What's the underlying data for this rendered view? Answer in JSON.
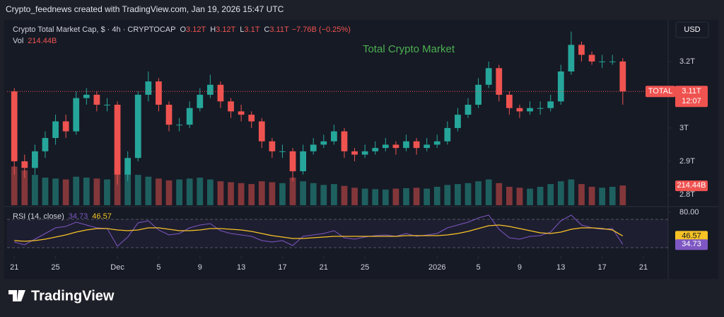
{
  "credit": "Crypto_feednews created with TradingView.com, Jan 19, 2026 15:47 UTC",
  "logo": "TradingView",
  "chart_data": {
    "type": "candlestick",
    "title": "Crypto Total Market Cap, $ · 4h · CRYPTOCAP",
    "ohlc_legend": [
      {
        "key": "O",
        "value": "3.12T"
      },
      {
        "key": "H",
        "value": "3.12T"
      },
      {
        "key": "L",
        "value": "3.1T"
      },
      {
        "key": "C",
        "value": "3.11T"
      }
    ],
    "change": "−7.76B (−0.25%)",
    "annotation": "Total Crypto Market",
    "currency": "USD",
    "symbol_tag": "TOTAL",
    "countdown": "12:07",
    "last_price": {
      "value": 3.11,
      "label": "3.11T"
    },
    "up_color": "#26a69a",
    "down_color": "#ef5350",
    "x": [
      0,
      1,
      2,
      3,
      4,
      5,
      6,
      7,
      8,
      9,
      10,
      11,
      12,
      13,
      14,
      15,
      16,
      17,
      18,
      19,
      20,
      21,
      22,
      23,
      24,
      25,
      26,
      27,
      28,
      29,
      30,
      31,
      32,
      33,
      34,
      35,
      36,
      37,
      38,
      39,
      40,
      41,
      42,
      43,
      44,
      45,
      46,
      47,
      48,
      49,
      50,
      51,
      52,
      53,
      54,
      55,
      56,
      57,
      58,
      59
    ],
    "open": [
      3.11,
      2.9,
      2.88,
      2.93,
      2.97,
      3.02,
      2.99,
      3.09,
      3.1,
      3.07,
      3.07,
      2.86,
      2.91,
      3.1,
      3.14,
      3.07,
      3.01,
      3.01,
      3.06,
      3.1,
      3.13,
      3.08,
      3.05,
      3.04,
      3.02,
      2.96,
      2.93,
      2.93,
      2.87,
      2.93,
      2.95,
      2.96,
      2.99,
      2.93,
      2.92,
      2.93,
      2.94,
      2.95,
      2.94,
      2.96,
      2.94,
      2.95,
      2.96,
      3.0,
      3.04,
      3.07,
      3.13,
      3.18,
      3.1,
      3.06,
      3.05,
      3.06,
      3.06,
      3.08,
      3.17,
      3.25,
      3.22,
      3.2,
      3.2,
      3.2
    ],
    "high": [
      3.12,
      2.92,
      2.95,
      2.99,
      3.04,
      3.04,
      3.11,
      3.12,
      3.11,
      3.09,
      3.08,
      2.93,
      3.11,
      3.17,
      3.15,
      3.08,
      3.03,
      3.08,
      3.12,
      3.16,
      3.14,
      3.09,
      3.07,
      3.05,
      3.03,
      2.97,
      2.95,
      2.94,
      2.95,
      2.97,
      2.98,
      3.01,
      3.0,
      2.94,
      2.95,
      2.96,
      2.97,
      2.96,
      2.98,
      2.97,
      2.97,
      2.98,
      3.02,
      3.06,
      3.09,
      3.15,
      3.2,
      3.19,
      3.11,
      3.07,
      3.08,
      3.08,
      3.1,
      3.19,
      3.29,
      3.26,
      3.23,
      3.22,
      3.22,
      3.21
    ],
    "low": [
      2.86,
      2.85,
      2.86,
      2.91,
      2.95,
      2.97,
      2.98,
      3.07,
      3.05,
      3.05,
      2.83,
      2.84,
      2.9,
      3.08,
      3.05,
      2.99,
      2.99,
      3.0,
      3.05,
      3.09,
      3.06,
      3.03,
      3.02,
      3.0,
      2.94,
      2.91,
      2.91,
      2.84,
      2.86,
      2.92,
      2.94,
      2.95,
      2.91,
      2.9,
      2.91,
      2.92,
      2.93,
      2.92,
      2.93,
      2.92,
      2.93,
      2.94,
      2.95,
      2.99,
      3.03,
      3.06,
      3.12,
      3.08,
      3.04,
      3.03,
      3.04,
      3.04,
      3.05,
      3.07,
      3.16,
      3.2,
      3.19,
      3.18,
      3.19,
      3.07
    ],
    "close": [
      2.9,
      2.88,
      2.93,
      2.97,
      3.02,
      2.99,
      3.09,
      3.1,
      3.07,
      3.07,
      2.86,
      2.91,
      3.1,
      3.14,
      3.07,
      3.01,
      3.01,
      3.06,
      3.1,
      3.13,
      3.08,
      3.05,
      3.04,
      3.02,
      2.96,
      2.93,
      2.93,
      2.87,
      2.93,
      2.95,
      2.96,
      2.99,
      2.93,
      2.92,
      2.93,
      2.94,
      2.95,
      2.94,
      2.96,
      2.94,
      2.95,
      2.96,
      3.0,
      3.04,
      3.07,
      3.13,
      3.18,
      3.1,
      3.06,
      3.05,
      3.06,
      3.06,
      3.08,
      3.17,
      3.25,
      3.22,
      3.2,
      3.2,
      3.2,
      3.11
    ],
    "xlim": [
      -0.7,
      63.4
    ],
    "xticks": [
      {
        "value": 0,
        "label": "21"
      },
      {
        "value": 4,
        "label": "25"
      },
      {
        "value": 10,
        "label": "Dec"
      },
      {
        "value": 14,
        "label": "5"
      },
      {
        "value": 18,
        "label": "9"
      },
      {
        "value": 22,
        "label": "13"
      },
      {
        "value": 26,
        "label": "17"
      },
      {
        "value": 30,
        "label": "21"
      },
      {
        "value": 34,
        "label": "25"
      },
      {
        "value": 41,
        "label": "2026"
      },
      {
        "value": 45,
        "label": "5"
      },
      {
        "value": 49,
        "label": "9"
      },
      {
        "value": 53,
        "label": "13"
      },
      {
        "value": 57,
        "label": "17"
      },
      {
        "value": 61,
        "label": "21"
      }
    ],
    "ylim": [
      2.768,
      3.321
    ],
    "yticks": [
      {
        "value": 3.2,
        "label": "3.2T"
      },
      {
        "value": 3.0,
        "label": "3T"
      },
      {
        "value": 2.9,
        "label": "2.9T"
      },
      {
        "value": 2.8,
        "label": "2.8T"
      }
    ],
    "volume": {
      "title": "Vol",
      "label": "214.44B",
      "values": [
        420,
        380,
        330,
        300,
        290,
        280,
        310,
        300,
        290,
        280,
        420,
        360,
        330,
        310,
        290,
        270,
        280,
        290,
        300,
        280,
        260,
        250,
        240,
        230,
        260,
        250,
        240,
        300,
        260,
        240,
        220,
        230,
        210,
        190,
        180,
        175,
        170,
        180,
        185,
        190,
        180,
        200,
        220,
        230,
        240,
        260,
        280,
        240,
        200,
        190,
        180,
        200,
        230,
        260,
        280,
        230,
        200,
        190,
        200,
        214.44
      ]
    },
    "rsi": {
      "title": "RSI (14, close)",
      "color": "#7e57c2",
      "ma_color": "#f7c325",
      "values": [
        38,
        34,
        42,
        50,
        58,
        60,
        66,
        62,
        58,
        57,
        32,
        45,
        65,
        68,
        55,
        48,
        50,
        58,
        62,
        64,
        54,
        50,
        48,
        46,
        40,
        38,
        40,
        33,
        46,
        48,
        50,
        54,
        44,
        42,
        45,
        47,
        48,
        46,
        50,
        46,
        48,
        50,
        58,
        62,
        66,
        72,
        76,
        56,
        44,
        42,
        46,
        47,
        52,
        68,
        76,
        62,
        58,
        56,
        57,
        34.73
      ],
      "ma": [
        40,
        39,
        40,
        42,
        45,
        48,
        52,
        55,
        57,
        57,
        55,
        54,
        55,
        58,
        58,
        56,
        54,
        54,
        55,
        57,
        57,
        56,
        55,
        53,
        50,
        47,
        45,
        43,
        43,
        44,
        45,
        46,
        46,
        46,
        46,
        46,
        46,
        46,
        47,
        47,
        47,
        47,
        48,
        50,
        53,
        57,
        61,
        62,
        60,
        57,
        54,
        51,
        50,
        52,
        56,
        58,
        58,
        57,
        55,
        46.57
      ],
      "ylim": [
        20,
        85
      ],
      "yticks": [
        {
          "value": 80,
          "label": "80.00"
        }
      ],
      "levels": [
        70,
        30
      ]
    }
  }
}
